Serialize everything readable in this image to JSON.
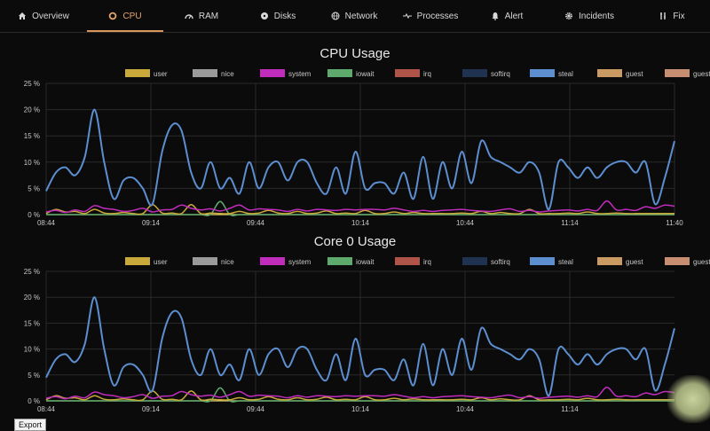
{
  "nav": {
    "tabs": [
      {
        "label": "Overview",
        "icon": "home-icon",
        "active": false
      },
      {
        "label": "CPU",
        "icon": "cpu-circle-icon",
        "active": true
      },
      {
        "label": "RAM",
        "icon": "gauge-icon",
        "active": false
      },
      {
        "label": "Disks",
        "icon": "disk-icon",
        "active": false
      },
      {
        "label": "Network",
        "icon": "globe-icon",
        "active": false
      },
      {
        "label": "Processes",
        "icon": "pulse-icon",
        "active": false
      },
      {
        "label": "Alert",
        "icon": "bell-icon",
        "active": false
      },
      {
        "label": "Incidents",
        "icon": "gear-icon",
        "active": false
      },
      {
        "label": "Fix",
        "icon": "tools-icon",
        "active": false
      }
    ]
  },
  "export_label": "Export",
  "colors": {
    "accent": "#d9955a",
    "user": "#c9a93a",
    "nice": "#9a9a9a",
    "system": "#c02dbd",
    "iowait": "#5ea96c",
    "irq": "#b0544a",
    "softirq": "#1f3350",
    "steal": "#5c8ed0",
    "guest": "#c99a62",
    "guestnice": "#c78e72"
  },
  "chart_data": [
    {
      "type": "line",
      "title": "CPU Usage",
      "legend": [
        "user",
        "nice",
        "system",
        "iowait",
        "irq",
        "softirq",
        "steal",
        "guest",
        "guestnice"
      ],
      "legend_position": "top",
      "y_ticks": [
        "0 %",
        "5 %",
        "10 %",
        "15 %",
        "20 %",
        "25 %"
      ],
      "ylim": [
        0,
        25
      ],
      "x_ticks": [
        "08:44",
        "09:14",
        "09:44",
        "10:14",
        "10:44",
        "11:14",
        "11:40"
      ],
      "grid": true,
      "series": [
        {
          "name": "steal",
          "values": [
            4.5,
            8,
            9,
            7.5,
            11,
            20,
            10,
            3,
            6.5,
            7,
            5,
            2,
            12,
            17,
            16,
            8,
            5,
            10,
            5,
            7,
            4,
            10,
            5,
            9,
            10,
            6.5,
            10,
            10,
            6,
            4,
            9,
            4,
            12,
            5,
            6,
            6,
            4,
            8,
            3,
            11,
            3,
            10,
            5,
            12,
            6,
            14,
            11,
            10,
            9,
            8,
            10,
            8,
            1,
            10,
            9,
            7,
            9,
            7,
            9,
            10,
            10,
            8,
            10,
            2,
            7,
            14
          ]
        },
        {
          "name": "system",
          "values": [
            0.5,
            0.8,
            0.4,
            0.9,
            0.6,
            1.7,
            1.2,
            1.0,
            0.6,
            0.8,
            1.2,
            0.5,
            0.9,
            1.0,
            1.8,
            1.2,
            0.9,
            1.1,
            0.7,
            1.2,
            1.8,
            0.9,
            1.1,
            1.0,
            0.9,
            0.6,
            1.0,
            0.7,
            1.0,
            0.9,
            0.8,
            1.0,
            0.9,
            1.0,
            1.0,
            0.9,
            1.2,
            0.9,
            0.6,
            0.8,
            0.6,
            0.8,
            0.9,
            1.0,
            0.8,
            0.7,
            0.6,
            0.9,
            1.1,
            0.6,
            0.8,
            0.5,
            0.7,
            0.8,
            0.9,
            0.7,
            1.0,
            0.8,
            2.6,
            0.9,
            1.0,
            0.8,
            1.5,
            1.2,
            1.8,
            1.6
          ]
        },
        {
          "name": "user",
          "values": [
            0.2,
            1.0,
            0.5,
            0.6,
            0.2,
            1.0,
            0.3,
            0.2,
            0.4,
            0.2,
            0.2,
            1.9,
            0.3,
            0.3,
            0.2,
            1.9,
            0.2,
            0.3,
            0.2,
            0.2,
            0.6,
            0.2,
            0.3,
            0.8,
            0.3,
            0.2,
            0.6,
            0.2,
            0.3,
            0.7,
            0.2,
            0.3,
            0.2,
            0.8,
            0.2,
            0.2,
            0.5,
            0.2,
            0.4,
            0.2,
            0.2,
            0.2,
            0.2,
            0.3,
            0.2,
            0.6,
            0.2,
            0.4,
            0.2,
            0.2,
            1.0,
            0.2,
            0.2,
            0.2,
            0.3,
            0.2,
            0.5,
            0.2,
            0.2,
            0.3,
            0.2,
            0.2,
            0.2,
            0.2,
            0.2,
            0.2
          ]
        },
        {
          "name": "iowait",
          "values": [
            0,
            0,
            0,
            0,
            0,
            0,
            0,
            0,
            0,
            0,
            0,
            0,
            0,
            0,
            0,
            0,
            0,
            0,
            2.5,
            0,
            0,
            0,
            0,
            0,
            0,
            0,
            0,
            0,
            0,
            0,
            0,
            0,
            0,
            0,
            0,
            0,
            0,
            0,
            0,
            0,
            0,
            0,
            0,
            0,
            0,
            0,
            0,
            0,
            0,
            0,
            0,
            0,
            0,
            0,
            0,
            0,
            0,
            0,
            0,
            0,
            0,
            0,
            0,
            0,
            0,
            0
          ]
        }
      ]
    },
    {
      "type": "line",
      "title": "Core 0 Usage",
      "legend": [
        "user",
        "nice",
        "system",
        "iowait",
        "irq",
        "softirq",
        "steal",
        "guest",
        "guestnice"
      ],
      "legend_position": "top",
      "y_ticks": [
        "0 %",
        "5 %",
        "10 %",
        "15 %",
        "20 %",
        "25 %"
      ],
      "ylim": [
        0,
        25
      ],
      "x_ticks": [
        "08:44",
        "09:14",
        "09:44",
        "10:14",
        "10:44",
        "11:14"
      ],
      "grid": true,
      "series": [
        {
          "name": "steal",
          "values": [
            4.5,
            8,
            9,
            7.5,
            11,
            20,
            10,
            3,
            6.5,
            7,
            5,
            2,
            12,
            17,
            16,
            8,
            5,
            10,
            5,
            7,
            4,
            10,
            5,
            9,
            10,
            6.5,
            10,
            10,
            6,
            4,
            9,
            4,
            12,
            5,
            6,
            6,
            4,
            8,
            3,
            11,
            3,
            10,
            5,
            12,
            6,
            14,
            11,
            10,
            9,
            8,
            10,
            8,
            1,
            10,
            9,
            7,
            9,
            7,
            9,
            10,
            10,
            8,
            10,
            2,
            7,
            14
          ]
        },
        {
          "name": "system",
          "values": [
            0.5,
            0.8,
            0.4,
            0.9,
            0.6,
            1.7,
            1.2,
            1.0,
            0.6,
            0.8,
            1.2,
            0.5,
            0.9,
            1.0,
            1.8,
            1.2,
            0.9,
            1.1,
            0.7,
            1.2,
            1.8,
            0.9,
            1.1,
            1.0,
            0.9,
            0.6,
            1.0,
            0.7,
            1.0,
            0.9,
            0.8,
            1.0,
            0.9,
            1.0,
            1.0,
            0.9,
            1.2,
            0.9,
            0.6,
            0.8,
            0.6,
            0.8,
            0.9,
            1.0,
            0.8,
            0.7,
            0.6,
            0.9,
            1.1,
            0.6,
            0.8,
            0.5,
            0.7,
            0.8,
            0.9,
            0.7,
            1.0,
            0.8,
            2.6,
            0.9,
            1.0,
            0.8,
            1.5,
            1.2,
            1.8,
            1.6
          ]
        },
        {
          "name": "user",
          "values": [
            0.2,
            1.0,
            0.5,
            0.6,
            0.2,
            1.0,
            0.3,
            0.2,
            0.4,
            0.2,
            0.2,
            1.9,
            0.3,
            0.3,
            0.2,
            1.9,
            0.2,
            0.3,
            0.2,
            0.2,
            0.6,
            0.2,
            0.3,
            0.8,
            0.3,
            0.2,
            0.6,
            0.2,
            0.3,
            0.7,
            0.2,
            0.3,
            0.2,
            0.8,
            0.2,
            0.2,
            0.5,
            0.2,
            0.4,
            0.2,
            0.2,
            0.2,
            0.2,
            0.3,
            0.2,
            0.6,
            0.2,
            0.4,
            0.2,
            0.2,
            1.0,
            0.2,
            0.2,
            0.2,
            0.3,
            0.2,
            0.5,
            0.2,
            0.2,
            0.3,
            0.2,
            0.2,
            0.2,
            0.2,
            0.2,
            0.2
          ]
        },
        {
          "name": "iowait",
          "values": [
            0,
            0,
            0,
            0,
            0,
            0,
            0,
            0,
            0,
            0,
            0,
            0,
            0,
            0,
            0,
            0,
            0,
            0,
            2.5,
            0,
            0,
            0,
            0,
            0,
            0,
            0,
            0,
            0,
            0,
            0,
            0,
            0,
            0,
            0,
            0,
            0,
            0,
            0,
            0,
            0,
            0,
            0,
            0,
            0,
            0,
            0,
            0,
            0,
            0,
            0,
            0,
            0,
            0,
            0,
            0,
            0,
            0,
            0,
            0,
            0,
            0,
            0,
            0,
            0,
            0,
            0
          ]
        }
      ]
    }
  ]
}
